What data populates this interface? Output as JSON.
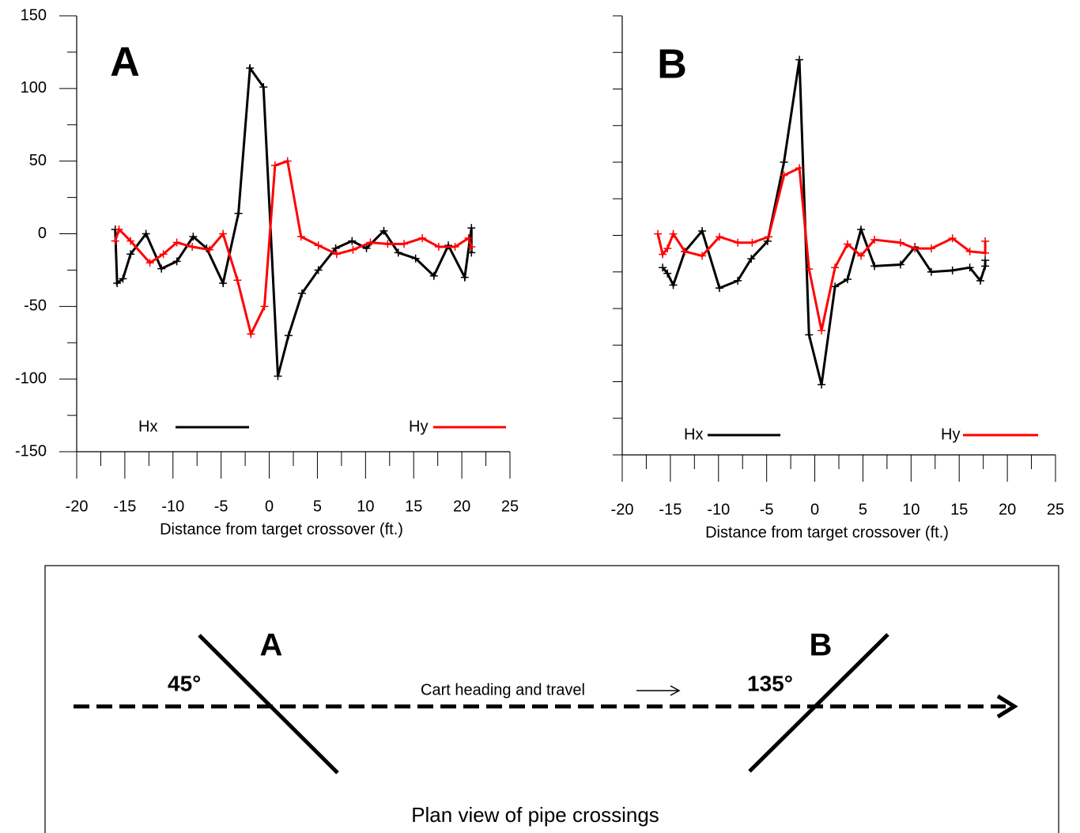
{
  "chart_data": [
    {
      "type": "line",
      "panel_label": "A",
      "x_label": "Distance from target crossover (ft.)",
      "xlim": [
        -20,
        25
      ],
      "xticks": [
        -20,
        -15,
        -10,
        -5,
        0,
        5,
        10,
        15,
        20,
        25
      ],
      "x_minor_ticks": [
        -17.5,
        -12.5,
        -7.5,
        -2.5,
        2.5,
        7.5,
        12.5,
        17.5,
        22.5
      ],
      "ylim": [
        -150,
        150
      ],
      "yticks": [
        -150,
        -100,
        -50,
        0,
        50,
        100,
        150
      ],
      "y_minor_ticks": [
        -125,
        -75,
        -25,
        25,
        75,
        125
      ],
      "ytick_labels": true,
      "series": [
        {
          "name": "Hx",
          "color": "#000000",
          "x": [
            -16.0,
            -15.8,
            -15.2,
            -14.4,
            -12.8,
            -11.2,
            -9.6,
            -7.9,
            -6.5,
            -4.8,
            -3.2,
            -2.0,
            -0.6,
            0.9,
            2.0,
            3.4,
            5.1,
            6.9,
            8.6,
            10.1,
            11.9,
            13.4,
            15.2,
            17.1,
            18.6,
            20.3,
            21.0,
            21.0
          ],
          "values": [
            3,
            -34,
            -31,
            -14,
            0,
            -24,
            -19,
            -2,
            -10,
            -34,
            14,
            114,
            101,
            -98,
            -70,
            -41,
            -25,
            -10,
            -5,
            -10,
            2,
            -13,
            -17,
            -29,
            -8,
            -30,
            4,
            -13
          ]
        },
        {
          "name": "Hy",
          "color": "#ff0000",
          "x": [
            -16.0,
            -15.6,
            -14.4,
            -12.4,
            -11.0,
            -9.6,
            -8.0,
            -6.2,
            -4.8,
            -3.3,
            -1.9,
            -0.5,
            0.6,
            1.9,
            3.3,
            5.1,
            7.0,
            8.7,
            10.5,
            12.3,
            14.0,
            15.9,
            17.6,
            19.3,
            20.7,
            21.0
          ],
          "values": [
            -5,
            3,
            -5,
            -20,
            -14,
            -6,
            -9,
            -11,
            0,
            -32,
            -69,
            -50,
            47,
            50,
            -2,
            -8,
            -14,
            -11,
            -6,
            -7,
            -7,
            -3,
            -9,
            -9,
            -3,
            -9
          ]
        }
      ]
    },
    {
      "type": "line",
      "panel_label": "B",
      "x_label": "Distance from target crossover (ft.)",
      "xlim": [
        -20,
        25
      ],
      "xticks": [
        -20,
        -15,
        -10,
        -5,
        0,
        5,
        10,
        15,
        20,
        25
      ],
      "x_minor_ticks": [
        -17.5,
        -12.5,
        -7.5,
        -2.5,
        2.5,
        7.5,
        12.5,
        17.5,
        22.5
      ],
      "ylim": [
        -150,
        150
      ],
      "yticks": [
        -150,
        -125,
        -100,
        -75,
        -50,
        -25,
        0,
        25,
        50,
        75,
        100,
        125,
        150
      ],
      "y_minor_ticks": [],
      "ytick_labels": false,
      "series": [
        {
          "name": "Hx",
          "color": "#000000",
          "x": [
            -15.8,
            -15.3,
            -14.7,
            -13.5,
            -11.7,
            -9.9,
            -8.0,
            -6.6,
            -4.9,
            -3.2,
            -1.6,
            -0.6,
            0.7,
            2.1,
            3.4,
            4.8,
            6.2,
            8.9,
            10.4,
            12.1,
            14.3,
            16.1,
            17.2,
            17.7,
            17.7
          ],
          "values": [
            -22,
            -26,
            -34,
            -11,
            3,
            -36,
            -31,
            -16,
            -4,
            50,
            120,
            -68,
            -102,
            -35,
            -30,
            4,
            -21,
            -20,
            -8,
            -25,
            -24,
            -22,
            -31,
            -21,
            -17
          ]
        },
        {
          "name": "Hy",
          "color": "#ff0000",
          "x": [
            -16.3,
            -15.8,
            -15.3,
            -14.7,
            -13.5,
            -11.7,
            -9.9,
            -8.0,
            -6.5,
            -4.8,
            -3.2,
            -1.6,
            -0.6,
            0.7,
            2.1,
            3.4,
            4.8,
            6.2,
            8.9,
            10.4,
            12.1,
            14.3,
            16.1,
            17.7,
            17.7
          ],
          "values": [
            1,
            -13,
            -9,
            1,
            -11,
            -14,
            -1,
            -5,
            -5,
            -1,
            41,
            46,
            -23,
            -65,
            -22,
            -6,
            -14,
            -3,
            -5,
            -9,
            -9,
            -2,
            -11,
            -12,
            -4
          ]
        }
      ]
    }
  ],
  "diagram": {
    "title": "Plan view of pipe crossings",
    "travel_label": "Cart heading and travel",
    "crossing_a": {
      "label": "A",
      "angle": "45°"
    },
    "crossing_b": {
      "label": "B",
      "angle": "135°"
    }
  }
}
